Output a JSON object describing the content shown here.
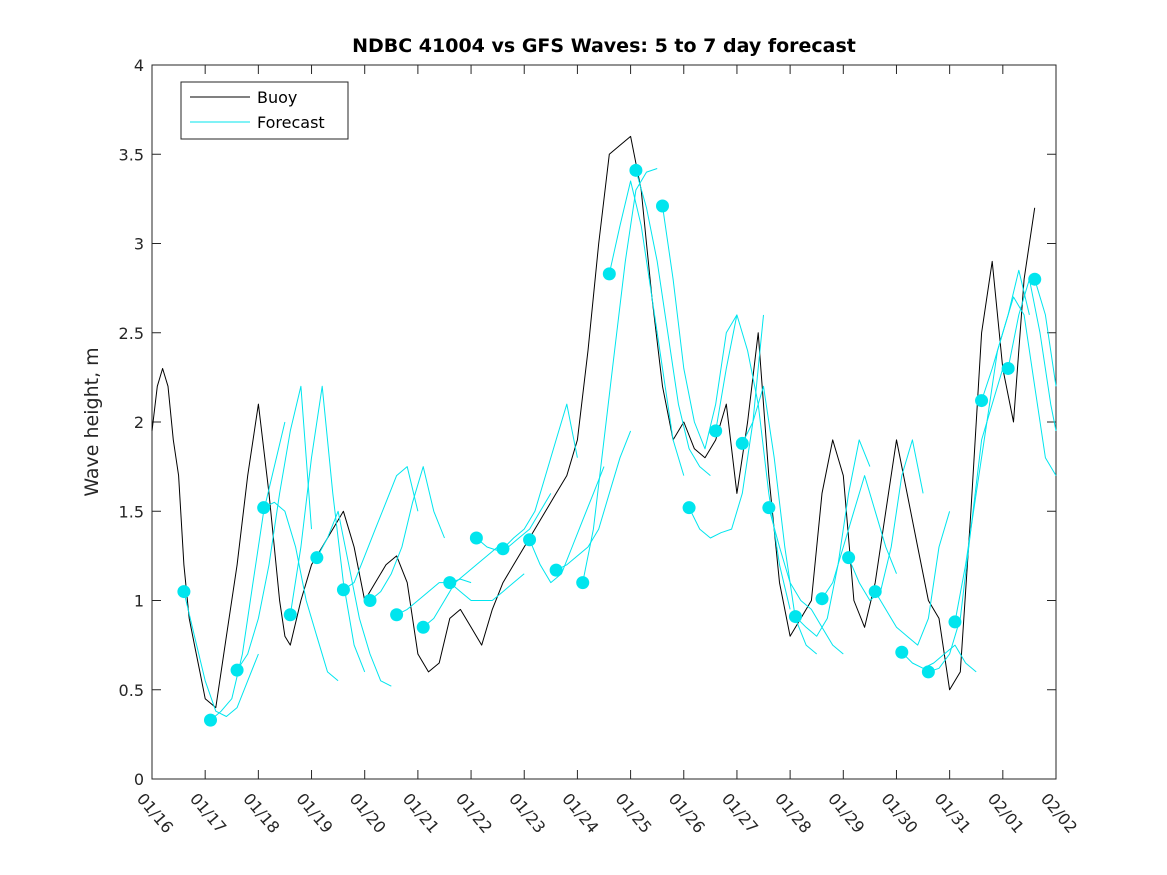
{
  "chart_data": {
    "type": "line",
    "title": "NDBC 41004 vs GFS Waves: 5 to 7 day forecast",
    "xlabel": "",
    "ylabel": "Wave height, m",
    "xlim": [
      0,
      17
    ],
    "ylim": [
      0,
      4
    ],
    "yticks": [
      0,
      0.5,
      1,
      1.5,
      2,
      2.5,
      3,
      3.5,
      4
    ],
    "ytick_labels": [
      "0",
      "0.5",
      "1",
      "1.5",
      "2",
      "2.5",
      "3",
      "3.5",
      "4"
    ],
    "xtick_labels": [
      "01/16",
      "01/17",
      "01/18",
      "01/19",
      "01/20",
      "01/21",
      "01/22",
      "01/23",
      "01/24",
      "01/25",
      "01/26",
      "01/27",
      "01/28",
      "01/29",
      "01/30",
      "01/31",
      "02/01",
      "02/02"
    ],
    "legend": {
      "position": "top-left",
      "entries": [
        {
          "label": "Buoy",
          "color": "#000000"
        },
        {
          "label": "Forecast",
          "color": "#00e5ee"
        }
      ]
    },
    "colors": {
      "buoy": "#000000",
      "forecast": "#00e5ee",
      "markers": "#00e5ee"
    },
    "series": [
      {
        "name": "Buoy",
        "x": [
          0.0,
          0.1,
          0.2,
          0.3,
          0.4,
          0.5,
          0.6,
          0.7,
          0.8,
          0.9,
          1.0,
          1.2,
          1.4,
          1.6,
          1.8,
          2.0,
          2.2,
          2.4,
          2.5,
          2.6,
          2.8,
          3.0,
          3.2,
          3.4,
          3.6,
          3.8,
          4.0,
          4.2,
          4.4,
          4.6,
          4.8,
          5.0,
          5.2,
          5.4,
          5.6,
          5.8,
          6.0,
          6.2,
          6.4,
          6.6,
          6.8,
          7.0,
          7.2,
          7.4,
          7.6,
          7.8,
          8.0,
          8.2,
          8.4,
          8.6,
          8.8,
          9.0,
          9.1,
          9.2,
          9.3,
          9.4,
          9.6,
          9.8,
          10.0,
          10.2,
          10.4,
          10.6,
          10.8,
          11.0,
          11.2,
          11.4,
          11.6,
          11.8,
          12.0,
          12.2,
          12.4,
          12.6,
          12.8,
          13.0,
          13.2,
          13.4,
          13.6,
          13.8,
          14.0,
          14.2,
          14.4,
          14.6,
          14.8,
          15.0,
          15.2,
          15.4,
          15.6,
          15.8,
          16.0,
          16.2,
          16.4,
          16.6
        ],
        "values": [
          1.95,
          2.2,
          2.3,
          2.2,
          1.9,
          1.7,
          1.2,
          0.9,
          0.75,
          0.6,
          0.45,
          0.4,
          0.8,
          1.2,
          1.7,
          2.1,
          1.6,
          1.0,
          0.8,
          0.75,
          1.0,
          1.2,
          1.3,
          1.4,
          1.5,
          1.3,
          1.0,
          1.1,
          1.2,
          1.25,
          1.1,
          0.7,
          0.6,
          0.65,
          0.9,
          0.95,
          0.85,
          0.75,
          0.95,
          1.1,
          1.2,
          1.3,
          1.4,
          1.5,
          1.6,
          1.7,
          1.9,
          2.4,
          3.0,
          3.5,
          3.55,
          3.6,
          3.45,
          3.3,
          3.0,
          2.7,
          2.2,
          1.9,
          2.0,
          1.85,
          1.8,
          1.9,
          2.1,
          1.6,
          2.0,
          2.5,
          1.7,
          1.1,
          0.8,
          0.9,
          1.0,
          1.6,
          1.9,
          1.7,
          1.0,
          0.85,
          1.1,
          1.5,
          1.9,
          1.6,
          1.3,
          1.0,
          0.9,
          0.5,
          0.6,
          1.5,
          2.5,
          2.9,
          2.3,
          2.0,
          2.8,
          3.2
        ]
      },
      {
        "name": "Forecast 1",
        "x": [
          0.6,
          0.8,
          1.0,
          1.2,
          1.4,
          1.6,
          1.8,
          2.0
        ],
        "values": [
          1.05,
          0.8,
          0.55,
          0.38,
          0.35,
          0.4,
          0.55,
          0.7
        ]
      },
      {
        "name": "Forecast 2",
        "x": [
          1.1,
          1.3,
          1.5,
          1.7,
          1.9,
          2.1,
          2.3,
          2.5
        ],
        "values": [
          0.33,
          0.38,
          0.45,
          0.7,
          1.1,
          1.5,
          1.75,
          2.0
        ]
      },
      {
        "name": "Forecast 3",
        "x": [
          1.6,
          1.8,
          2.0,
          2.2,
          2.4,
          2.6,
          2.8,
          3.0
        ],
        "values": [
          0.61,
          0.7,
          0.9,
          1.2,
          1.6,
          1.95,
          2.2,
          1.4
        ]
      },
      {
        "name": "Forecast 4",
        "x": [
          2.1,
          2.3,
          2.5,
          2.7,
          2.9,
          3.1,
          3.3,
          3.5
        ],
        "values": [
          1.52,
          1.55,
          1.5,
          1.3,
          1.0,
          0.8,
          0.6,
          0.55
        ]
      },
      {
        "name": "Forecast 5",
        "x": [
          2.6,
          2.8,
          3.0,
          3.2,
          3.4,
          3.6,
          3.8,
          4.0
        ],
        "values": [
          0.92,
          1.3,
          1.8,
          2.2,
          1.6,
          1.1,
          0.75,
          0.6
        ]
      },
      {
        "name": "Forecast 6",
        "x": [
          3.1,
          3.3,
          3.5,
          3.7,
          3.9,
          4.1,
          4.3,
          4.5
        ],
        "values": [
          1.24,
          1.35,
          1.5,
          1.2,
          0.9,
          0.7,
          0.55,
          0.52
        ]
      },
      {
        "name": "Forecast 7",
        "x": [
          3.6,
          3.8,
          4.0,
          4.2,
          4.4,
          4.6,
          4.8,
          5.0
        ],
        "values": [
          1.06,
          1.1,
          1.25,
          1.4,
          1.55,
          1.7,
          1.75,
          1.5
        ]
      },
      {
        "name": "Forecast 8",
        "x": [
          4.1,
          4.3,
          4.5,
          4.7,
          4.9,
          5.1,
          5.3,
          5.5
        ],
        "values": [
          1.0,
          1.05,
          1.15,
          1.3,
          1.55,
          1.75,
          1.5,
          1.35
        ]
      },
      {
        "name": "Forecast 9",
        "x": [
          4.6,
          4.8,
          5.0,
          5.2,
          5.4,
          5.6,
          5.8,
          6.0
        ],
        "values": [
          0.92,
          0.95,
          1.0,
          1.05,
          1.1,
          1.1,
          1.12,
          1.1
        ]
      },
      {
        "name": "Forecast 10",
        "x": [
          5.1,
          5.3,
          5.5,
          5.7,
          5.9,
          6.1,
          6.3,
          6.5
        ],
        "values": [
          0.85,
          0.9,
          1.0,
          1.1,
          1.15,
          1.2,
          1.25,
          1.3
        ]
      },
      {
        "name": "Forecast 11",
        "x": [
          5.6,
          5.8,
          6.0,
          6.2,
          6.4,
          6.6,
          6.8,
          7.0
        ],
        "values": [
          1.1,
          1.05,
          1.0,
          1.0,
          1.0,
          1.05,
          1.1,
          1.15
        ]
      },
      {
        "name": "Forecast 12",
        "x": [
          6.1,
          6.3,
          6.5,
          6.7,
          6.9,
          7.1,
          7.3,
          7.5
        ],
        "values": [
          1.35,
          1.3,
          1.28,
          1.3,
          1.35,
          1.4,
          1.5,
          1.6
        ]
      },
      {
        "name": "Forecast 13",
        "x": [
          6.6,
          6.8,
          7.0,
          7.2,
          7.4,
          7.6,
          7.8,
          8.0
        ],
        "values": [
          1.29,
          1.35,
          1.4,
          1.5,
          1.7,
          1.9,
          2.1,
          1.8
        ]
      },
      {
        "name": "Forecast 14",
        "x": [
          7.1,
          7.3,
          7.5,
          7.7,
          7.9,
          8.1,
          8.3,
          8.5
        ],
        "values": [
          1.34,
          1.2,
          1.1,
          1.15,
          1.3,
          1.45,
          1.6,
          1.75
        ]
      },
      {
        "name": "Forecast 15",
        "x": [
          7.6,
          7.8,
          8.0,
          8.2,
          8.4,
          8.6,
          8.8,
          9.0
        ],
        "values": [
          1.17,
          1.2,
          1.25,
          1.3,
          1.4,
          1.6,
          1.8,
          1.95
        ]
      },
      {
        "name": "Forecast 16",
        "x": [
          8.1,
          8.3,
          8.5,
          8.7,
          8.9,
          9.1,
          9.3,
          9.5
        ],
        "values": [
          1.1,
          1.4,
          1.9,
          2.4,
          2.9,
          3.3,
          3.4,
          3.42
        ]
      },
      {
        "name": "Forecast 17",
        "x": [
          8.6,
          8.8,
          9.0,
          9.2,
          9.4,
          9.6,
          9.8,
          10.0
        ],
        "values": [
          2.83,
          3.1,
          3.35,
          3.1,
          2.7,
          2.3,
          1.9,
          1.7
        ]
      },
      {
        "name": "Forecast 18",
        "x": [
          9.1,
          9.3,
          9.5,
          9.7,
          9.9,
          10.1,
          10.3,
          10.5
        ],
        "values": [
          3.41,
          3.2,
          2.9,
          2.5,
          2.1,
          1.85,
          1.75,
          1.7
        ]
      },
      {
        "name": "Forecast 19",
        "x": [
          9.6,
          9.8,
          10.0,
          10.2,
          10.4,
          10.6,
          10.8,
          11.0
        ],
        "values": [
          3.21,
          2.8,
          2.3,
          2.0,
          1.85,
          2.1,
          2.5,
          2.6
        ]
      },
      {
        "name": "Forecast 20",
        "x": [
          10.1,
          10.3,
          10.5,
          10.7,
          10.9,
          11.1,
          11.3,
          11.5
        ],
        "values": [
          1.52,
          1.4,
          1.35,
          1.38,
          1.4,
          1.6,
          2.0,
          2.6
        ]
      },
      {
        "name": "Forecast 21",
        "x": [
          10.6,
          10.8,
          11.0,
          11.2,
          11.4,
          11.6,
          11.8,
          12.0
        ],
        "values": [
          1.95,
          2.3,
          2.6,
          2.4,
          2.1,
          1.6,
          1.2,
          0.95
        ]
      },
      {
        "name": "Forecast 22",
        "x": [
          11.1,
          11.3,
          11.5,
          11.7,
          11.9,
          12.1,
          12.3,
          12.5
        ],
        "values": [
          1.88,
          2.0,
          2.2,
          1.8,
          1.3,
          0.9,
          0.75,
          0.7
        ]
      },
      {
        "name": "Forecast 23",
        "x": [
          11.6,
          11.8,
          12.0,
          12.2,
          12.4,
          12.6,
          12.8,
          13.0
        ],
        "values": [
          1.52,
          1.3,
          1.1,
          1.0,
          0.95,
          0.85,
          0.75,
          0.7
        ]
      },
      {
        "name": "Forecast 24",
        "x": [
          12.1,
          12.3,
          12.5,
          12.7,
          12.9,
          13.1,
          13.3,
          13.5
        ],
        "values": [
          0.91,
          0.85,
          0.8,
          0.9,
          1.2,
          1.6,
          1.9,
          1.75
        ]
      },
      {
        "name": "Forecast 25",
        "x": [
          12.6,
          12.8,
          13.0,
          13.2,
          13.4,
          13.6,
          13.8,
          14.0
        ],
        "values": [
          1.01,
          1.1,
          1.3,
          1.5,
          1.7,
          1.5,
          1.3,
          1.15
        ]
      },
      {
        "name": "Forecast 26",
        "x": [
          13.1,
          13.3,
          13.5,
          13.7,
          13.9,
          14.1,
          14.3,
          14.5
        ],
        "values": [
          1.24,
          1.1,
          1.0,
          1.05,
          1.3,
          1.7,
          1.9,
          1.6
        ]
      },
      {
        "name": "Forecast 27",
        "x": [
          13.6,
          13.8,
          14.0,
          14.2,
          14.4,
          14.6,
          14.8,
          15.0
        ],
        "values": [
          1.05,
          0.95,
          0.85,
          0.8,
          0.75,
          0.9,
          1.3,
          1.5
        ]
      },
      {
        "name": "Forecast 28",
        "x": [
          14.1,
          14.3,
          14.5,
          14.7,
          14.9,
          15.1,
          15.3,
          15.5
        ],
        "values": [
          0.71,
          0.65,
          0.62,
          0.65,
          0.7,
          0.75,
          0.65,
          0.6
        ]
      },
      {
        "name": "Forecast 29",
        "x": [
          14.6,
          14.8,
          15.0,
          15.2,
          15.4,
          15.6,
          15.8,
          16.0
        ],
        "values": [
          0.6,
          0.62,
          0.7,
          0.9,
          1.4,
          1.9,
          2.1,
          2.3
        ]
      },
      {
        "name": "Forecast 30",
        "x": [
          15.1,
          15.3,
          15.5,
          15.7,
          15.9,
          16.1,
          16.3,
          16.5
        ],
        "values": [
          0.88,
          1.2,
          1.6,
          2.0,
          2.4,
          2.6,
          2.85,
          2.6
        ]
      },
      {
        "name": "Forecast 31",
        "x": [
          15.6,
          15.8,
          16.0,
          16.2,
          16.4,
          16.6,
          16.8,
          17.0
        ],
        "values": [
          2.12,
          2.3,
          2.5,
          2.7,
          2.6,
          2.2,
          1.8,
          1.7
        ]
      },
      {
        "name": "Forecast 32",
        "x": [
          16.1,
          16.3,
          16.5,
          16.7,
          16.9,
          17.0
        ],
        "values": [
          2.3,
          2.6,
          2.8,
          2.5,
          2.1,
          1.95
        ]
      },
      {
        "name": "Forecast 33",
        "x": [
          16.6,
          16.8,
          17.0
        ],
        "values": [
          2.8,
          2.6,
          2.2
        ]
      }
    ]
  }
}
